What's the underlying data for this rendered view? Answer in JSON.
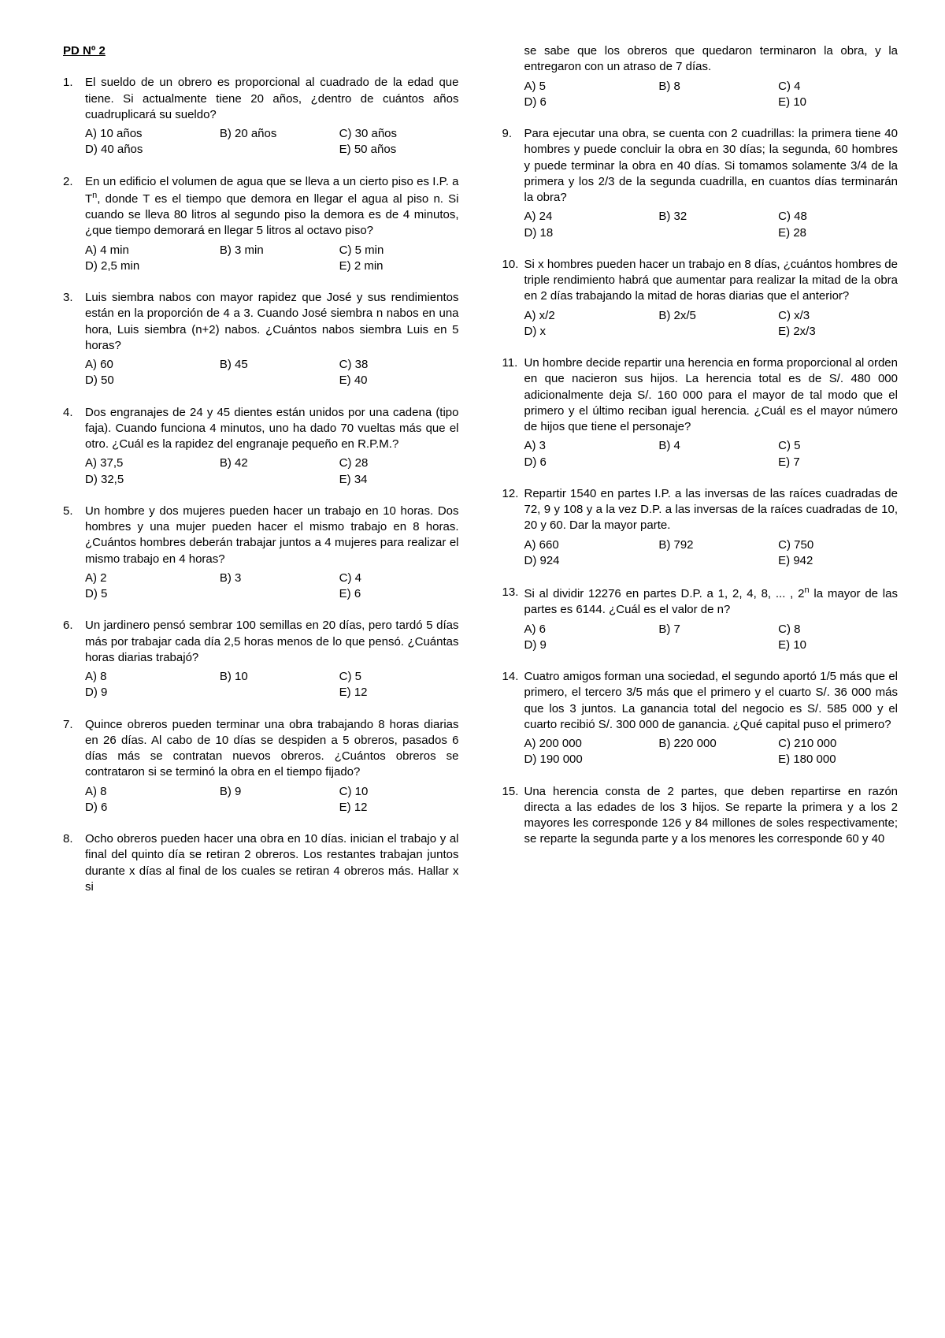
{
  "title": "PD Nº 2",
  "col1_start": 0,
  "col2_start": 8,
  "q8_continuation_stem": "se sabe que los obreros que quedaron terminaron la obra, y la entregaron con un atraso de 7 días.",
  "q8_cont_opts": {
    "a": "A) 5",
    "b": "B) 8",
    "c": "C) 4",
    "d": "D) 6",
    "e": "E) 10"
  },
  "col1": [
    {
      "stem": "El sueldo de un obrero es proporcional al cuadrado de la edad que tiene. Si actualmente tiene 20 años, ¿dentro de cuántos años cuadruplicará su sueldo?",
      "a": "A) 10 años",
      "b": "B) 20 años",
      "c": "C) 30 años",
      "d": "D) 40 años",
      "e": "E) 50 años"
    },
    {
      "stem_html": "En un edificio el volumen de agua que se lleva a un cierto piso es I.P. a T<span class='math-sup'>n</span>, donde T es el tiempo que demora en llegar el agua al piso n. Si cuando se lleva 80 litros al segundo piso la demora es de 4 minutos, ¿que tiempo demorará en llegar 5 litros al octavo piso?",
      "a": "A) 4 min",
      "b": "B) 3 min",
      "c": "C) 5 min",
      "d": "D) 2,5 min",
      "e": "E) 2 min"
    },
    {
      "stem": "Luis siembra nabos con mayor rapidez que José y sus rendimientos están en la proporción de 4 a 3. Cuando José siembra n nabos en una hora, Luis siembra (n+2) nabos. ¿Cuántos nabos siembra Luis en 5 horas?",
      "a": "A) 60",
      "b": "B) 45",
      "c": "C) 38",
      "d": "D) 50",
      "e": "E) 40"
    },
    {
      "stem": "Dos engranajes de 24 y 45 dientes están unidos por una cadena (tipo faja). Cuando funciona 4 minutos, uno ha dado 70 vueltas más que el otro. ¿Cuál es la rapidez del engranaje pequeño en R.P.M.?",
      "a": "A) 37,5",
      "b": "B) 42",
      "c": "C) 28",
      "d": "D) 32,5",
      "e": "E) 34"
    },
    {
      "stem": "Un hombre y dos mujeres pueden hacer un trabajo en 10 horas. Dos hombres y una mujer pueden hacer el mismo trabajo en 8 horas. ¿Cuántos hombres deberán trabajar juntos a 4 mujeres para realizar el mismo trabajo en 4 horas?",
      "a": "A) 2",
      "b": "B) 3",
      "c": "C) 4",
      "d": "D) 5",
      "e": "E) 6"
    },
    {
      "stem": "Un jardinero pensó sembrar 100 semillas en 20 días, pero tardó 5 días más por trabajar cada día 2,5 horas menos de lo que pensó. ¿Cuántas horas diarias trabajó?",
      "a": "A) 8",
      "b": "B) 10",
      "c": "C) 5",
      "d": "D) 9",
      "e": "E) 12"
    },
    {
      "stem": "Quince obreros pueden terminar una obra trabajando 8 horas diarias en 26 días. Al cabo de 10 días se despiden a 5 obreros, pasados 6 días más se contratan nuevos obreros. ¿Cuántos obreros se contrataron si se terminó la obra en el tiempo fijado?",
      "a": "A) 8",
      "b": "B) 9",
      "c": "C) 10",
      "d": "D) 6",
      "e": "E) 12"
    },
    {
      "stem": "Ocho obreros pueden hacer una obra en 10 días. inician el trabajo y al final del quinto día se retiran 2 obreros. Los restantes trabajan juntos durante x días al final de los cuales se retiran 4 obreros más. Hallar x si",
      "no_opts": true
    }
  ],
  "col2": [
    {
      "stem": "Para ejecutar una obra, se cuenta con 2 cuadrillas: la primera tiene 40 hombres y puede concluir la obra en 30 días; la segunda, 60 hombres y puede terminar la obra en 40 días. Si tomamos solamente 3/4 de la primera y los 2/3 de la segunda cuadrilla, en cuantos días terminarán la obra?",
      "a": "A) 24",
      "b": "B) 32",
      "c": "C) 48",
      "d": "D) 18",
      "e": "E) 28"
    },
    {
      "stem": "Si x hombres pueden hacer un trabajo en 8 días, ¿cuántos hombres de triple rendimiento habrá que aumentar para realizar la mitad de la obra en 2 días trabajando la mitad de horas diarias que el anterior?",
      "a": "A) x/2",
      "b": "B) 2x/5",
      "c": "C) x/3",
      "d": "D) x",
      "e": "E) 2x/3"
    },
    {
      "stem": "Un hombre decide repartir una herencia en forma proporcional al orden en que nacieron sus hijos. La herencia total es de S/. 480 000 adicionalmente deja S/. 160 000 para el mayor de tal modo que el primero y el último reciban igual herencia. ¿Cuál es el mayor número de hijos que tiene el personaje?",
      "a": "A) 3",
      "b": "B) 4",
      "c": "C) 5",
      "d": "D) 6",
      "e": "E) 7"
    },
    {
      "stem": "Repartir 1540 en partes I.P. a las inversas de las raíces cuadradas de 72, 9 y 108 y a la vez D.P. a las inversas de la raíces cuadradas de 10, 20 y 60. Dar la mayor parte.",
      "a": "A) 660",
      "b": "B) 792",
      "c": "C) 750",
      "d": "D) 924",
      "e": "E) 942"
    },
    {
      "stem_html": "Si al dividir 12276 en partes D.P. a 1, 2, 4, 8, ... , 2<span class='math-sup'>n</span> la mayor de las partes es 6144. ¿Cuál es el valor de n?",
      "a": "A) 6",
      "b": "B) 7",
      "c": "C) 8",
      "d": "D) 9",
      "e": "E) 10"
    },
    {
      "stem": "Cuatro amigos forman una sociedad, el segundo aportó 1/5 más que el primero, el tercero 3/5 más que el primero y el cuarto S/. 36 000 más que los 3 juntos. La ganancia total del negocio es S/. 585 000 y el cuarto recibió S/. 300 000 de ganancia. ¿Qué capital puso el primero?",
      "a": "A) 200 000",
      "b": "B) 220 000",
      "c": "C) 210 000",
      "d": "D) 190 000",
      "e": "E) 180 000"
    },
    {
      "stem": "Una herencia consta de 2 partes, que deben repartirse en razón directa a las edades de los 3 hijos. Se reparte la primera y a los 2 mayores les corresponde 126 y 84 millones de soles respectivamente; se reparte la segunda parte y a los menores les corresponde 60 y 40",
      "no_opts": true
    }
  ]
}
